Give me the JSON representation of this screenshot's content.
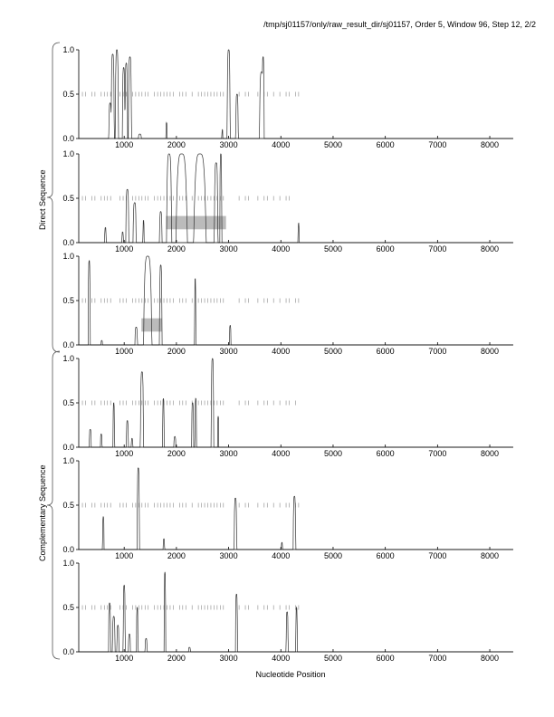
{
  "header": {
    "title": "/tmp/sj01157/only/raw_result_dir/sj01157, Order 5, Window 96, Step 12, 2/2"
  },
  "groups": {
    "direct": "Direct Sequence",
    "complementary": "Complementary Sequence"
  },
  "chart_data": [
    {
      "type": "line",
      "frame": "direct-1",
      "xlabel": "Nucleotide Position",
      "xlim": [
        130,
        8450
      ],
      "ylim": [
        0,
        1
      ],
      "xticks": [
        1000,
        2000,
        3000,
        4000,
        5000,
        6000,
        7000,
        8000
      ],
      "yticks": [
        "0.0",
        "0.5",
        "1.0"
      ],
      "peaks": [
        [
          730,
          0.4,
          25
        ],
        [
          780,
          0.95,
          30
        ],
        [
          860,
          1.0,
          30
        ],
        [
          990,
          0.8,
          25
        ],
        [
          1040,
          0.85,
          25
        ],
        [
          1110,
          0.92,
          30
        ],
        [
          1300,
          0.05,
          30
        ],
        [
          1810,
          0.18,
          12
        ],
        [
          2880,
          0.1,
          10
        ],
        [
          3000,
          1.0,
          30
        ],
        [
          3160,
          0.5,
          25
        ],
        [
          3630,
          0.75,
          40
        ],
        [
          3660,
          0.92,
          20
        ]
      ],
      "ticks_range": [
        200,
        4350
      ],
      "boxes": []
    },
    {
      "type": "line",
      "frame": "direct-2",
      "xlim": [
        130,
        8450
      ],
      "ylim": [
        0,
        1
      ],
      "peaks": [
        [
          640,
          0.17,
          15
        ],
        [
          970,
          0.12,
          15
        ],
        [
          1060,
          0.6,
          30
        ],
        [
          1200,
          0.45,
          30
        ],
        [
          1370,
          0.25,
          12
        ],
        [
          1700,
          0.35,
          25
        ],
        [
          1860,
          1.0,
          50
        ],
        [
          2100,
          1.0,
          110
        ],
        [
          2450,
          1.0,
          120
        ],
        [
          2420,
          0.3,
          15
        ],
        [
          2760,
          0.9,
          35
        ],
        [
          2850,
          1.0,
          20
        ],
        [
          4340,
          0.22,
          12
        ]
      ],
      "ticks_range": [
        200,
        4250
      ],
      "boxes": [
        [
          1800,
          2950,
          0.15,
          0.3
        ]
      ]
    },
    {
      "type": "line",
      "frame": "direct-3",
      "xlim": [
        130,
        8450
      ],
      "ylim": [
        0,
        1
      ],
      "peaks": [
        [
          330,
          0.95,
          20
        ],
        [
          570,
          0.05,
          15
        ],
        [
          1230,
          0.2,
          25
        ],
        [
          1450,
          1.0,
          80
        ],
        [
          1700,
          0.9,
          25
        ],
        [
          2360,
          0.75,
          12
        ],
        [
          3030,
          0.22,
          15
        ]
      ],
      "ticks_range": [
        200,
        4350
      ],
      "boxes": [
        [
          1330,
          1720,
          0.15,
          0.3
        ]
      ]
    },
    {
      "type": "line",
      "frame": "complementary-1",
      "xlim": [
        130,
        8450
      ],
      "ylim": [
        0,
        1
      ],
      "peaks": [
        [
          350,
          0.2,
          20
        ],
        [
          560,
          0.15,
          15
        ],
        [
          800,
          0.5,
          15
        ],
        [
          1060,
          0.3,
          20
        ],
        [
          1150,
          0.1,
          15
        ],
        [
          1340,
          0.85,
          30
        ],
        [
          1750,
          0.55,
          15
        ],
        [
          1970,
          0.12,
          20
        ],
        [
          2310,
          0.5,
          20
        ],
        [
          2370,
          0.55,
          15
        ],
        [
          2690,
          1.0,
          25
        ],
        [
          2800,
          0.35,
          12
        ]
      ],
      "ticks_range": [
        200,
        4300
      ],
      "boxes": []
    },
    {
      "type": "line",
      "frame": "complementary-2",
      "xlim": [
        130,
        8450
      ],
      "ylim": [
        0,
        1
      ],
      "peaks": [
        [
          600,
          0.37,
          15
        ],
        [
          1270,
          0.92,
          22
        ],
        [
          1760,
          0.12,
          15
        ],
        [
          3130,
          0.58,
          25
        ],
        [
          4020,
          0.08,
          12
        ],
        [
          4260,
          0.6,
          25
        ]
      ],
      "ticks_range": [
        200,
        4350
      ],
      "boxes": []
    },
    {
      "type": "line",
      "frame": "complementary-3",
      "xlim": [
        130,
        8450
      ],
      "ylim": [
        0,
        1
      ],
      "peaks": [
        [
          720,
          0.55,
          20
        ],
        [
          800,
          0.4,
          25
        ],
        [
          880,
          0.3,
          20
        ],
        [
          1000,
          0.75,
          20
        ],
        [
          1100,
          0.2,
          20
        ],
        [
          1250,
          0.5,
          15
        ],
        [
          1420,
          0.15,
          20
        ],
        [
          1780,
          0.9,
          15
        ],
        [
          2250,
          0.05,
          20
        ],
        [
          3150,
          0.65,
          20
        ],
        [
          4120,
          0.45,
          20
        ],
        [
          4300,
          0.5,
          15
        ]
      ],
      "ticks_range": [
        200,
        4350
      ],
      "boxes": []
    }
  ]
}
